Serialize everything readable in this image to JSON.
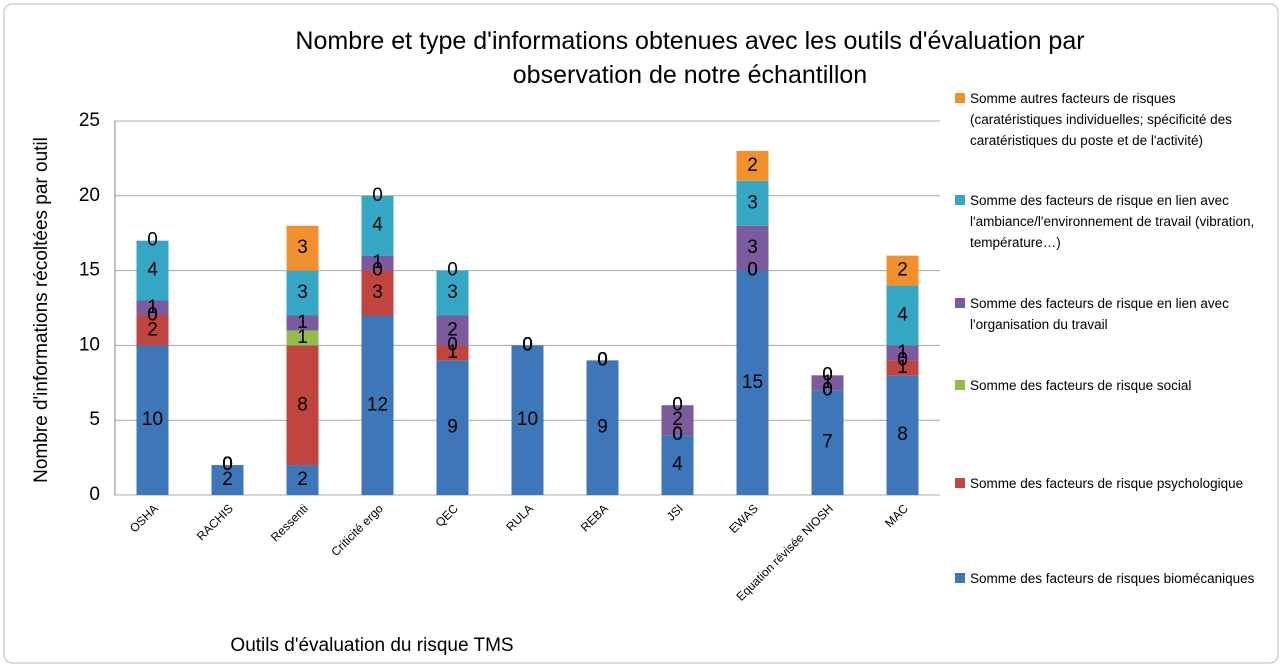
{
  "chart_data": {
    "type": "stacked_bar",
    "title": "Nombre et type d'informations obtenues avec les outils d'évaluation par observation de notre échantillon",
    "xlabel": "Outils d'évaluation du risque TMS",
    "ylabel": "Nombre d'informations récoltées par outil",
    "categories": [
      "OSHA",
      "RACHIS",
      "Ressenti",
      "Criticité ergo",
      "QEC",
      "RULA",
      "REBA",
      "JSI",
      "EWAS",
      "Equation révisée NIOSH",
      "MAC"
    ],
    "series": [
      {
        "name": "Somme des facteurs de risques biomécaniques",
        "color": "#3d76b9",
        "values": [
          10,
          2,
          2,
          12,
          9,
          10,
          9,
          4,
          15,
          7,
          8
        ]
      },
      {
        "name": "Somme des facteurs de risque psychologique",
        "color": "#c0453f",
        "values": [
          2,
          0,
          8,
          3,
          1,
          0,
          0,
          0,
          0,
          0,
          1
        ]
      },
      {
        "name": "Somme des facteurs de risque social",
        "color": "#95bb4c",
        "values": [
          0,
          0,
          1,
          0,
          0,
          0,
          0,
          0,
          0,
          0,
          0
        ]
      },
      {
        "name": "Somme des facteurs de risque en lien avec l'organisation du travail",
        "color": "#7c5a9e",
        "values": [
          1,
          0,
          1,
          1,
          2,
          0,
          0,
          2,
          3,
          1,
          1
        ]
      },
      {
        "name": "Somme des facteurs de risque en lien avec l'ambiance/l'environnement de travail (vibration, température…)",
        "color": "#35a7c4",
        "values": [
          4,
          0,
          3,
          4,
          3,
          0,
          0,
          0,
          3,
          0,
          4
        ]
      },
      {
        "name": "Somme autres facteurs de risques (caratéristiques individuelles; spécificité des caratéristiques du poste et de l'activité)",
        "color": "#f0912d",
        "values": [
          0,
          0,
          3,
          0,
          0,
          0,
          0,
          0,
          2,
          0,
          2
        ]
      }
    ],
    "ylim": [
      0,
      25
    ],
    "yticks": [
      0,
      5,
      10,
      15,
      20,
      25
    ],
    "grid": true,
    "legend": "right"
  }
}
